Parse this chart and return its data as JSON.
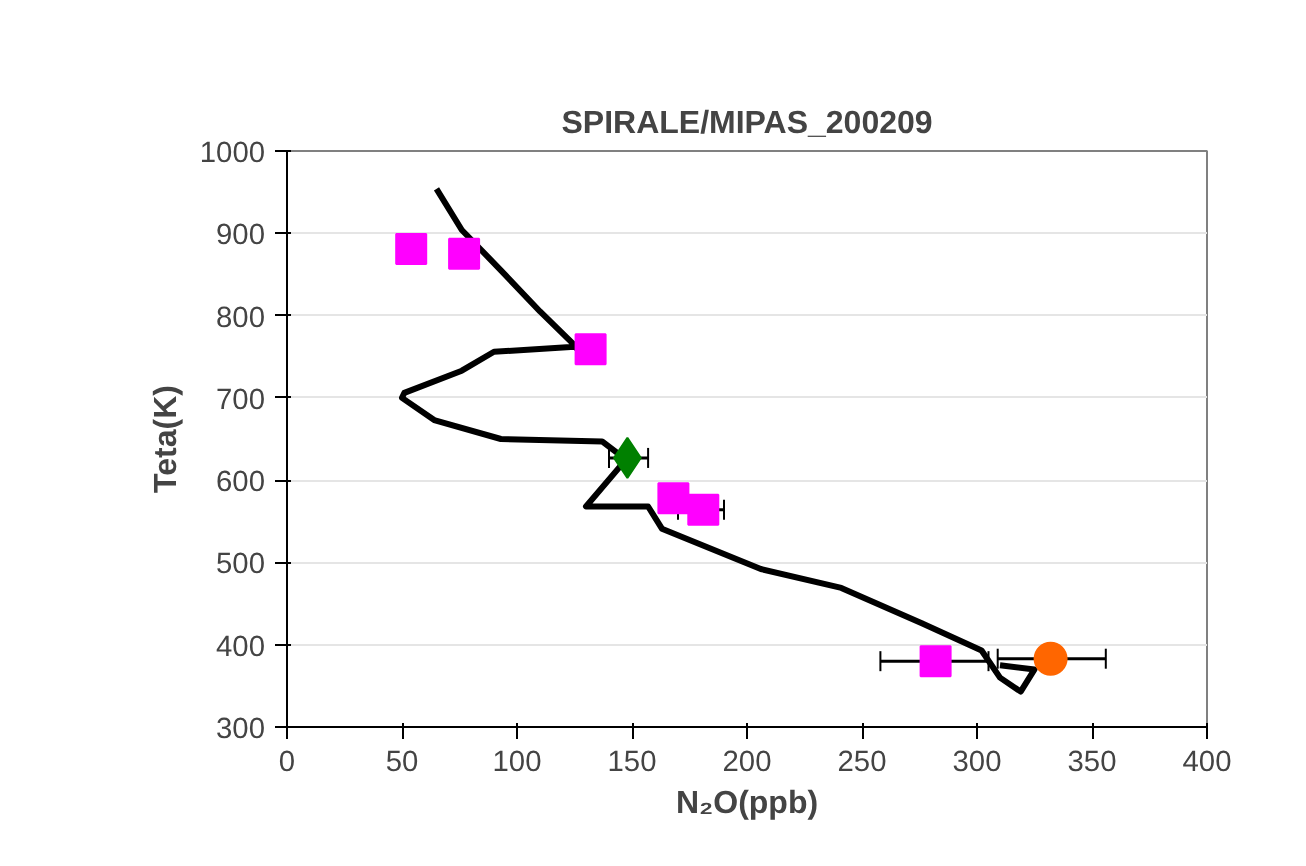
{
  "chart_data": {
    "type": "scatter",
    "title": "SPIRALE/MIPAS_200209",
    "xlabel": "N₂O(ppb)",
    "ylabel": "Teta(K)",
    "xlim": [
      0,
      400
    ],
    "xticks": [
      0,
      50,
      100,
      150,
      200,
      250,
      300,
      350,
      400
    ],
    "ylim": [
      300,
      1000
    ],
    "yticks": [
      300,
      400,
      500,
      600,
      700,
      800,
      900,
      1000
    ],
    "grid": "y",
    "series": [
      {
        "type": "line",
        "color": "#000000",
        "line_style": "solid",
        "marker": "none",
        "x": [
          65,
          76,
          93,
          110,
          128,
          125,
          90,
          76,
          51,
          50,
          64,
          93,
          137,
          145,
          148,
          130,
          157,
          163,
          206,
          241,
          276,
          302,
          310,
          319,
          325,
          310
        ],
        "values": [
          954,
          904,
          855,
          805,
          756,
          762,
          756,
          733,
          706,
          700,
          673,
          650,
          647,
          630,
          627,
          568,
          568,
          541,
          492,
          469,
          426,
          393,
          360,
          343,
          370,
          375
        ]
      },
      {
        "color": "#ff00ff",
        "marker": "square",
        "x": [
          54,
          77,
          132,
          168,
          181,
          282
        ],
        "values": [
          881,
          875,
          759,
          578,
          564,
          380
        ],
        "xerrors": [
          null,
          null,
          null,
          null,
          [
            170,
            190
          ],
          [
            258,
            305
          ]
        ]
      },
      {
        "color": "#008000",
        "marker": "diamond",
        "x": [
          148
        ],
        "values": [
          627
        ],
        "xerrors": [
          [
            140,
            157
          ]
        ]
      },
      {
        "color": "#ff6600",
        "marker": "circle",
        "x": [
          332
        ],
        "values": [
          383
        ],
        "xerrors": [
          [
            309,
            356
          ]
        ]
      }
    ]
  }
}
